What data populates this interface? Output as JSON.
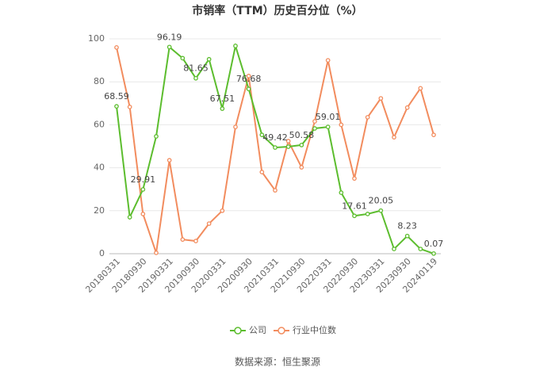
{
  "chart_data": {
    "type": "line",
    "title": "市销率（TTM）历史百分位（%）",
    "source": "数据来源：恒生聚源",
    "categories": [
      "20180331",
      null,
      "20180930",
      null,
      "20190331",
      null,
      "20190930",
      null,
      "20200331",
      null,
      "20200930",
      null,
      "20210331",
      null,
      "20210930",
      null,
      "20220331",
      null,
      "20220930",
      null,
      "20230331",
      null,
      "20230930",
      null,
      "20240119"
    ],
    "series": [
      {
        "name": "公司",
        "color": "#5cbd2e",
        "values": [
          68.59,
          17,
          29.91,
          54.6,
          96.19,
          91,
          81.65,
          90.5,
          67.51,
          96.7,
          76.68,
          55.3,
          49.42,
          49.8,
          50.58,
          58.3,
          59.01,
          28.4,
          17.61,
          18.5,
          20.05,
          2.2,
          8.23,
          2.2,
          0.07
        ]
      },
      {
        "name": "行业中位数",
        "color": "#f28c5e",
        "values": [
          96,
          68.3,
          18.5,
          0.4,
          43.5,
          6.6,
          5.9,
          14,
          20,
          59,
          82.7,
          38,
          29.5,
          52.4,
          40.2,
          61.6,
          90,
          60,
          35,
          63.5,
          72.3,
          54.2,
          68,
          77,
          55.3
        ]
      }
    ],
    "ylim": [
      0,
      100
    ],
    "yticks": [
      0,
      20,
      40,
      60,
      80,
      100
    ],
    "grid": true
  }
}
